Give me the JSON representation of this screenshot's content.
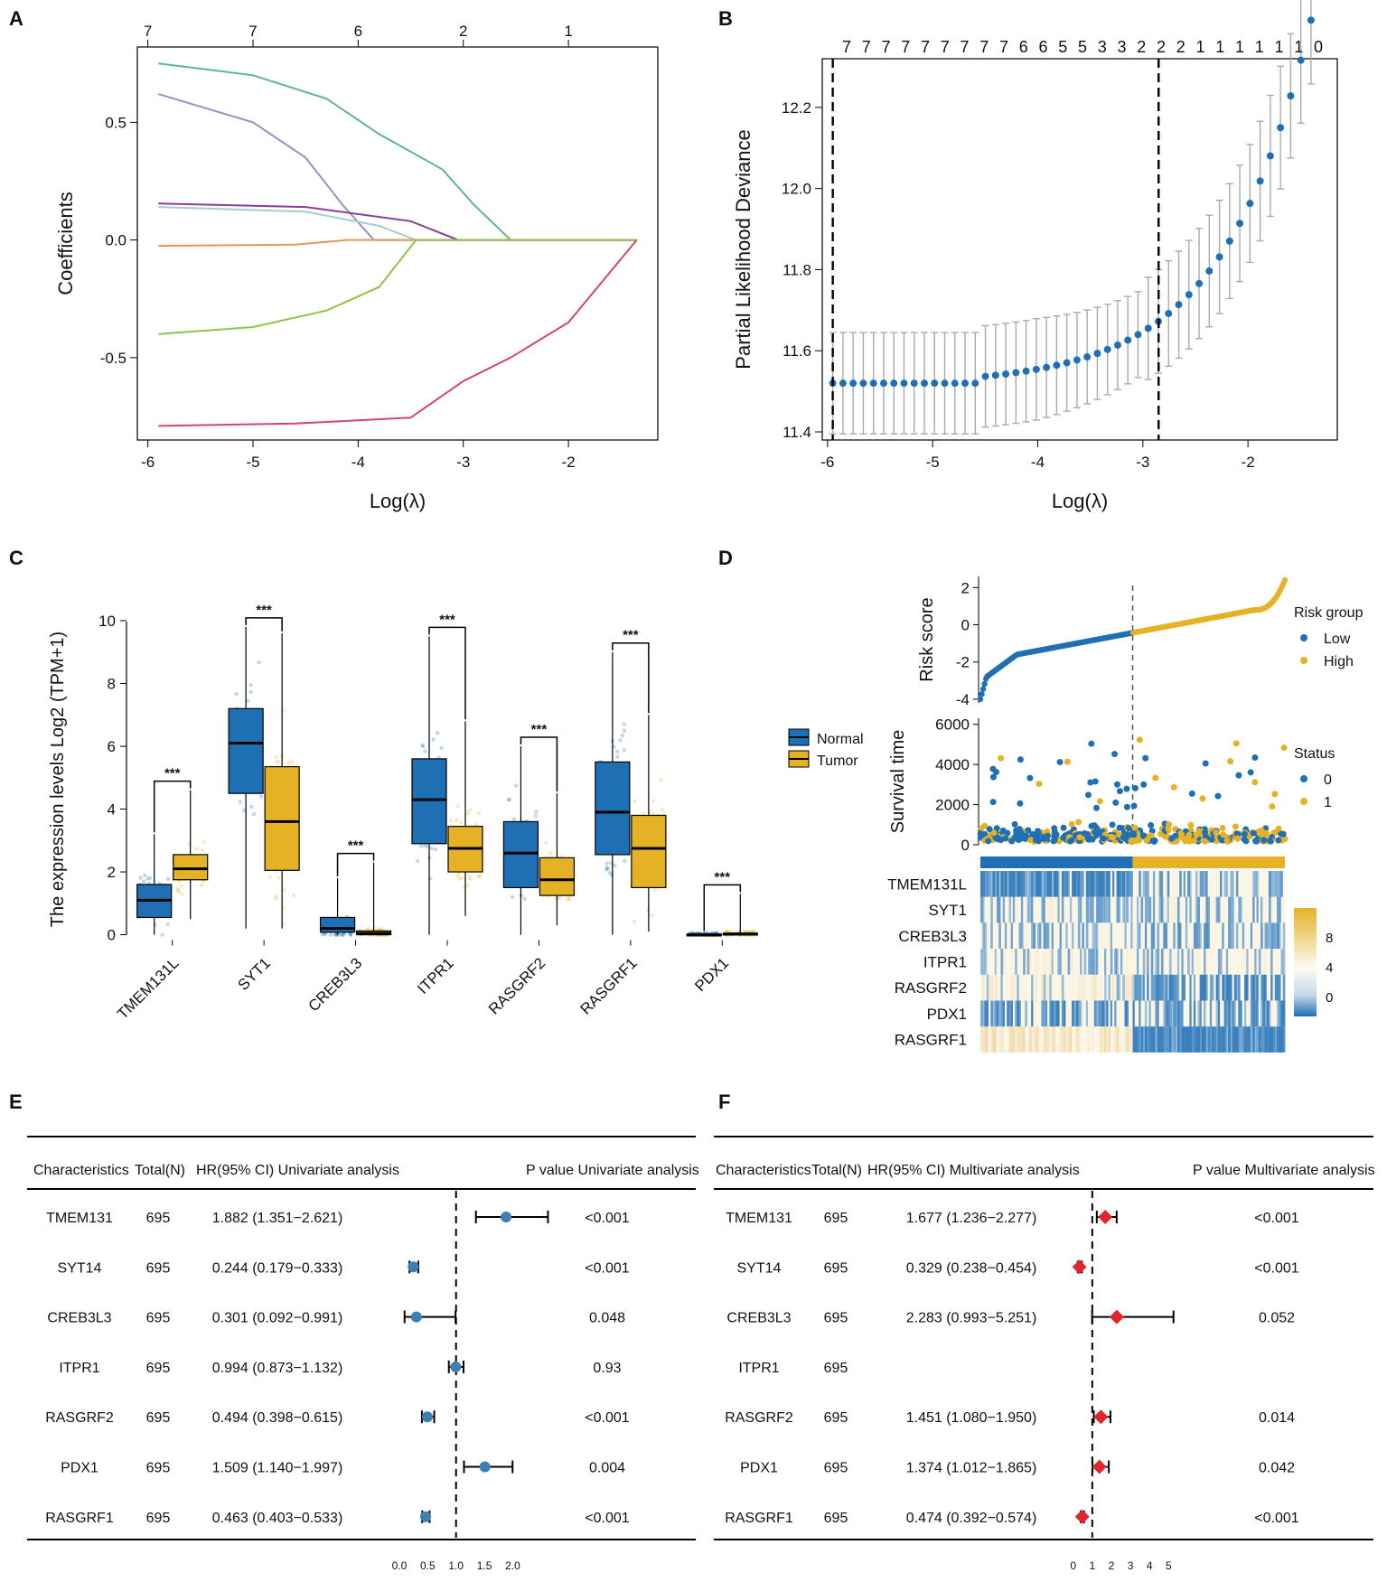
{
  "chart_data": [
    {
      "panel": "A",
      "type": "line",
      "xlabel": "Log(λ)",
      "ylabel": "Coefficients",
      "xlim": [
        -6.1,
        -1.15
      ],
      "ylim": [
        -0.85,
        0.82
      ],
      "x_ticks": [
        -6,
        -5,
        -4,
        -3,
        -2
      ],
      "x_tick_labels": [
        "-6",
        "-5",
        "-4",
        "-3",
        "-2"
      ],
      "y_ticks": [
        0.5,
        0.0,
        -0.5
      ],
      "y_tick_labels": [
        "0.5",
        "0.0",
        "-0.5"
      ],
      "top_ticks": [
        -6,
        -5,
        -4,
        -3,
        -2
      ],
      "top_tick_labels": [
        "7",
        "7",
        "6",
        "2",
        "1"
      ],
      "series": [
        {
          "name": "green-teal",
          "color": "#5cb88a",
          "x": [
            -5.9,
            -5.0,
            -4.3,
            -3.8,
            -3.2,
            -2.9,
            -2.55,
            -1.35
          ],
          "y": [
            0.75,
            0.7,
            0.6,
            0.45,
            0.3,
            0.15,
            0.0,
            0.0
          ]
        },
        {
          "name": "lavender",
          "color": "#9b8ec7",
          "x": [
            -5.9,
            -5.0,
            -4.5,
            -4.15,
            -3.85,
            -1.35
          ],
          "y": [
            0.62,
            0.5,
            0.35,
            0.15,
            0.0,
            0.0
          ]
        },
        {
          "name": "purple",
          "color": "#8a3d9c",
          "x": [
            -5.9,
            -4.5,
            -3.5,
            -3.05,
            -1.35
          ],
          "y": [
            0.155,
            0.14,
            0.08,
            0.0,
            0.0
          ]
        },
        {
          "name": "light-teal",
          "color": "#a5ccd0",
          "x": [
            -5.9,
            -4.5,
            -3.8,
            -3.45,
            -1.35
          ],
          "y": [
            0.14,
            0.12,
            0.06,
            0.0,
            0.0
          ]
        },
        {
          "name": "orange",
          "color": "#e0975a",
          "x": [
            -5.9,
            -4.6,
            -4.1,
            -3.5,
            -1.35
          ],
          "y": [
            -0.025,
            -0.02,
            0.0,
            0.0,
            0.0
          ]
        },
        {
          "name": "yellow-green",
          "color": "#93c24a",
          "x": [
            -5.9,
            -5.0,
            -4.3,
            -3.8,
            -3.45,
            -1.35
          ],
          "y": [
            -0.4,
            -0.37,
            -0.3,
            -0.2,
            0.0,
            0.0
          ]
        },
        {
          "name": "crimson",
          "color": "#d4456a",
          "x": [
            -5.9,
            -4.6,
            -3.5,
            -3.0,
            -2.55,
            -2.0,
            -1.35
          ],
          "y": [
            -0.79,
            -0.78,
            -0.755,
            -0.6,
            -0.5,
            -0.35,
            0.0
          ]
        }
      ]
    },
    {
      "panel": "B",
      "type": "scatter",
      "xlabel": "Log(λ)",
      "ylabel": "Partial Likelihood Deviance",
      "xlim": [
        -6.05,
        -1.15
      ],
      "ylim": [
        11.38,
        12.32
      ],
      "x_ticks": [
        -6,
        -5,
        -4,
        -3,
        -2
      ],
      "x_tick_labels": [
        "-6",
        "-5",
        "-4",
        "-3",
        "-2"
      ],
      "y_ticks": [
        11.4,
        11.6,
        11.8,
        12.0,
        12.2
      ],
      "y_tick_labels": [
        "11.4",
        "11.6",
        "11.8",
        "12.0",
        "12.2"
      ],
      "top_tick_labels": [
        "7",
        "7",
        "7",
        "7",
        "7",
        "7",
        "7",
        "7",
        "7",
        "6",
        "6",
        "5",
        "5",
        "3",
        "3",
        "2",
        "2",
        "2",
        "1",
        "1",
        "1",
        "1",
        "1",
        "1",
        "0"
      ],
      "vlines": [
        -5.95,
        -2.85
      ],
      "x_range": [
        -5.95,
        -1.4
      ],
      "n_points": 48,
      "color": "#1f6fb4",
      "err_color": "#aaaaaa"
    },
    {
      "panel": "C",
      "type": "box",
      "ylabel": "The expression levels Log2 (TPM+1)",
      "ylim": [
        -0.3,
        10.2
      ],
      "y_ticks": [
        0,
        2,
        4,
        6,
        8,
        10
      ],
      "y_tick_labels": [
        "0",
        "2",
        "4",
        "6",
        "8",
        "10"
      ],
      "categories": [
        "TMEM131L",
        "SYT1",
        "CREB3L3",
        "ITPR1",
        "RASGRF2",
        "RASGRF1",
        "PDX1"
      ],
      "legend": [
        {
          "name": "Normal",
          "color": "#1f6fb4"
        },
        {
          "name": "Tumor",
          "color": "#e5b225"
        }
      ],
      "significance": "***",
      "series": [
        {
          "name": "Normal",
          "color": "#1f6fb4",
          "q1": [
            0.55,
            4.5,
            0.08,
            2.9,
            1.5,
            2.55,
            0.0
          ],
          "median": [
            1.1,
            6.1,
            0.2,
            4.3,
            2.6,
            3.9,
            0.0
          ],
          "q3": [
            1.6,
            7.2,
            0.55,
            5.6,
            3.6,
            5.5,
            0.02
          ],
          "whisker_low": [
            0.0,
            0.2,
            0.0,
            0.0,
            0.0,
            0.0,
            0.0
          ],
          "whisker_high": [
            3.2,
            9.8,
            1.8,
            9.5,
            6.0,
            9.0,
            0.05
          ]
        },
        {
          "name": "Tumor",
          "color": "#e5b225",
          "q1": [
            1.75,
            2.05,
            0.0,
            2.0,
            1.25,
            1.5,
            0.0
          ],
          "median": [
            2.1,
            3.6,
            0.05,
            2.75,
            1.75,
            2.75,
            0.02
          ],
          "q3": [
            2.55,
            5.35,
            0.12,
            3.45,
            2.45,
            3.8,
            0.05
          ],
          "whisker_low": [
            0.5,
            0.2,
            0.0,
            0.6,
            0.3,
            0.1,
            0.0
          ],
          "whisker_high": [
            4.6,
            9.6,
            2.3,
            6.8,
            4.5,
            7.0,
            1.3
          ]
        }
      ]
    },
    {
      "panel": "D",
      "type": "scatter",
      "risk_ylabel": "Risk score",
      "risk_ylim": [
        -4.2,
        2.6
      ],
      "risk_y_ticks": [
        2,
        0,
        -2,
        -4
      ],
      "risk_y_tick_labels": [
        "2",
        "0",
        "-2",
        "-4"
      ],
      "risk_legend_title": "Risk group",
      "risk_legend": [
        {
          "name": "Low",
          "color": "#1f6fb4"
        },
        {
          "name": "High",
          "color": "#e5b225"
        }
      ],
      "surv_ylabel": "Survival time",
      "surv_ylim": [
        0,
        6300
      ],
      "surv_y_ticks": [
        6000,
        4000,
        2000,
        0
      ],
      "surv_y_tick_labels": [
        "6000",
        "4000",
        "2000",
        "0"
      ],
      "status_legend_title": "Status",
      "status_legend": [
        {
          "name": "0",
          "color": "#1f6fb4"
        },
        {
          "name": "1",
          "color": "#e5b225"
        }
      ],
      "n_patients": 695,
      "cutoff_fraction": 0.5,
      "heatmap_genes": [
        "TMEM131L",
        "SYT1",
        "CREB3L3",
        "ITPR1",
        "RASGRF2",
        "PDX1",
        "RASGRF1"
      ],
      "colorbar_ticks": [
        8,
        4,
        0
      ],
      "colorbar_tick_labels": [
        "8",
        "4",
        "0"
      ],
      "colors": {
        "low": "#1f6fb4",
        "high": "#e5b225",
        "mid": "#fbf6e4"
      }
    },
    {
      "panel": "E",
      "type": "table",
      "headers": [
        "Characteristics",
        "Total(N)",
        "HR(95% CI) Univariate analysis",
        "P value Univariate analysis"
      ],
      "rows": [
        {
          "name": "TMEM131",
          "n": "695",
          "hr_text": "1.882 (1.351−2.621)",
          "p": "<0.001",
          "hr": 1.882,
          "lo": 1.351,
          "hi": 2.621
        },
        {
          "name": "SYT14",
          "n": "695",
          "hr_text": "0.244 (0.179−0.333)",
          "p": "<0.001",
          "hr": 0.244,
          "lo": 0.179,
          "hi": 0.333
        },
        {
          "name": "CREB3L3",
          "n": "695",
          "hr_text": "0.301 (0.092−0.991)",
          "p": "0.048",
          "hr": 0.301,
          "lo": 0.092,
          "hi": 0.991
        },
        {
          "name": "ITPR1",
          "n": "695",
          "hr_text": "0.994 (0.873−1.132)",
          "p": "0.93",
          "hr": 0.994,
          "lo": 0.873,
          "hi": 1.132
        },
        {
          "name": "RASGRF2",
          "n": "695",
          "hr_text": "0.494 (0.398−0.615)",
          "p": "<0.001",
          "hr": 0.494,
          "lo": 0.398,
          "hi": 0.615
        },
        {
          "name": "PDX1",
          "n": "695",
          "hr_text": "1.509 (1.140−1.997)",
          "p": "0.004",
          "hr": 1.509,
          "lo": 1.14,
          "hi": 1.997
        },
        {
          "name": "RASGRF1",
          "n": "695",
          "hr_text": "0.463 (0.403−0.533)",
          "p": "<0.001",
          "hr": 0.463,
          "lo": 0.403,
          "hi": 0.533
        }
      ],
      "axis_ticks": [
        0.0,
        0.5,
        1.0,
        1.5,
        2.0
      ],
      "axis_tick_labels": [
        "0.0",
        "0.5",
        "1.0",
        "1.5",
        "2.0"
      ],
      "xlim": [
        -0.35,
        2.2
      ],
      "ref_line": 1.0,
      "marker_color": "#3b7fb5"
    },
    {
      "panel": "F",
      "type": "table",
      "headers": [
        "Characteristics",
        "Total(N)",
        "HR(95% CI) Multivariate analysis",
        "P value Multivariate analysis"
      ],
      "rows": [
        {
          "name": "TMEM131",
          "n": "695",
          "hr_text": "1.677 (1.236−2.277)",
          "p": "<0.001",
          "hr": 1.677,
          "lo": 1.236,
          "hi": 2.277
        },
        {
          "name": "SYT14",
          "n": "695",
          "hr_text": "0.329 (0.238−0.454)",
          "p": "<0.001",
          "hr": 0.329,
          "lo": 0.238,
          "hi": 0.454
        },
        {
          "name": "CREB3L3",
          "n": "695",
          "hr_text": "2.283 (0.993−5.251)",
          "p": "0.052",
          "hr": 2.283,
          "lo": 0.993,
          "hi": 5.251
        },
        {
          "name": "ITPR1",
          "n": "695",
          "hr_text": "",
          "p": ""
        },
        {
          "name": "RASGRF2",
          "n": "695",
          "hr_text": "1.451 (1.080−1.950)",
          "p": "0.014",
          "hr": 1.451,
          "lo": 1.08,
          "hi": 1.95
        },
        {
          "name": "PDX1",
          "n": "695",
          "hr_text": "1.374 (1.012−1.865)",
          "p": "0.042",
          "hr": 1.374,
          "lo": 1.012,
          "hi": 1.865
        },
        {
          "name": "RASGRF1",
          "n": "695",
          "hr_text": "0.474 (0.392−0.574)",
          "p": "<0.001",
          "hr": 0.474,
          "lo": 0.392,
          "hi": 0.574
        }
      ],
      "axis_ticks": [
        0,
        1,
        2,
        3,
        4,
        5
      ],
      "axis_tick_labels": [
        "0",
        "1",
        "2",
        "3",
        "4",
        "5"
      ],
      "xlim": [
        -0.6,
        6.4
      ],
      "ref_line": 1.0,
      "marker_color": "#e0262c"
    }
  ]
}
